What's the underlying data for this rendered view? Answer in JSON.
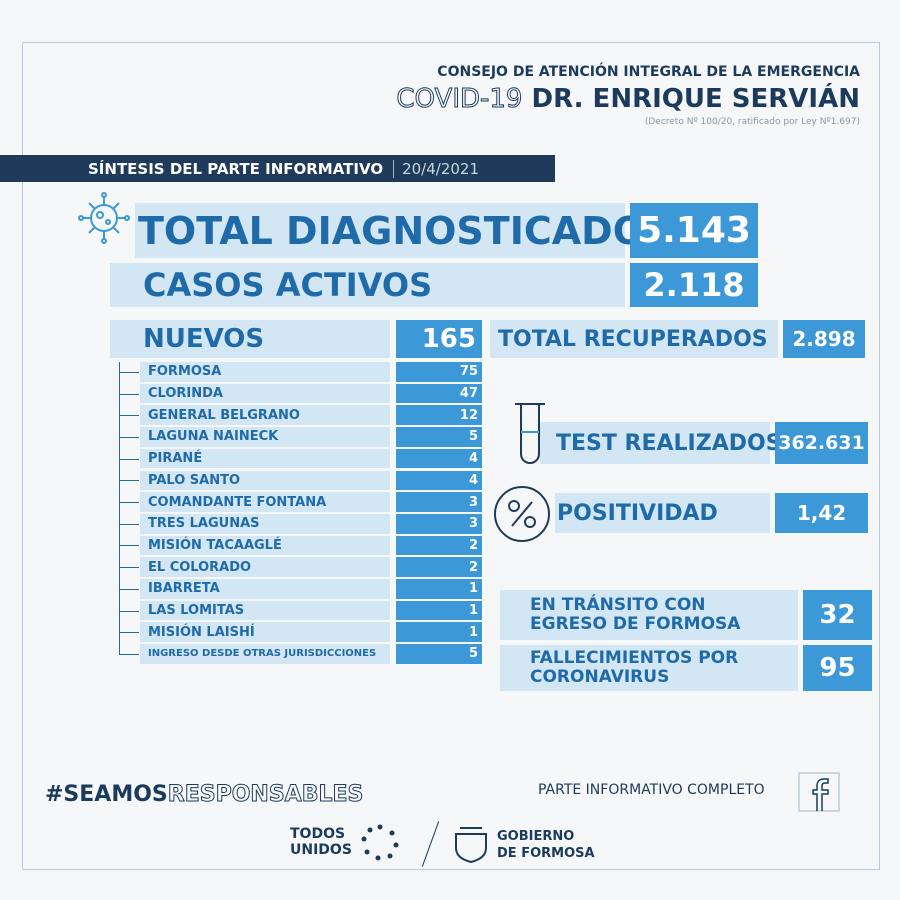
{
  "header": {
    "council": "CONSEJO DE ATENCIÓN INTEGRAL DE LA EMERGENCIA",
    "covid": "COVID-19",
    "doctor": "DR. ENRIQUE SERVIÁN",
    "decree": "(Decreto Nº 100/20, ratificado por Ley Nº1.697)"
  },
  "banner": {
    "title": "SÍNTESIS DEL PARTE INFORMATIVO",
    "date": "20/4/2021"
  },
  "diagnosed": {
    "label": "TOTAL DIAGNOSTICADOS",
    "value": "5.143"
  },
  "active": {
    "label": "CASOS ACTIVOS",
    "value": "2.118"
  },
  "new_cases": {
    "label": "NUEVOS",
    "value": "165",
    "rows": [
      [
        "FORMOSA",
        "75"
      ],
      [
        "CLORINDA",
        "47"
      ],
      [
        "GENERAL BELGRANO",
        "12"
      ],
      [
        "LAGUNA NAINECK",
        "5"
      ],
      [
        "PIRANÉ",
        "4"
      ],
      [
        "PALO SANTO",
        "4"
      ],
      [
        "COMANDANTE FONTANA",
        "3"
      ],
      [
        "TRES LAGUNAS",
        "3"
      ],
      [
        "MISIÓN TACAAGLÉ",
        "2"
      ],
      [
        "EL COLORADO",
        "2"
      ],
      [
        "IBARRETA",
        "1"
      ],
      [
        "LAS LOMITAS",
        "1"
      ],
      [
        "MISIÓN LAISHÍ",
        "1"
      ],
      [
        "INGRESO DESDE OTRAS JURISDICCIONES",
        "5"
      ]
    ]
  },
  "recovered": {
    "label": "TOTAL RECUPERADOS",
    "value": "2.898"
  },
  "tests": {
    "label": "TEST REALIZADOS",
    "value": "362.631"
  },
  "positivity": {
    "label": "POSITIVIDAD",
    "value": "1,42"
  },
  "transit": {
    "label": [
      "EN TRÁNSITO CON",
      "EGRESO DE FORMOSA"
    ],
    "value": "32"
  },
  "deaths": {
    "label": [
      "FALLECIMIENTOS POR",
      "CORONAVIRUS"
    ],
    "value": "95"
  },
  "footer": {
    "hashtag": [
      "#SEAMOS",
      "RESPONSABLES"
    ],
    "full_report": "PARTE INFORMATIVO COMPLETO",
    "logo_left": [
      "TODOS",
      "UNIDOS"
    ],
    "logo_right": [
      "GOBIERNO",
      "DE FORMOSA"
    ]
  }
}
